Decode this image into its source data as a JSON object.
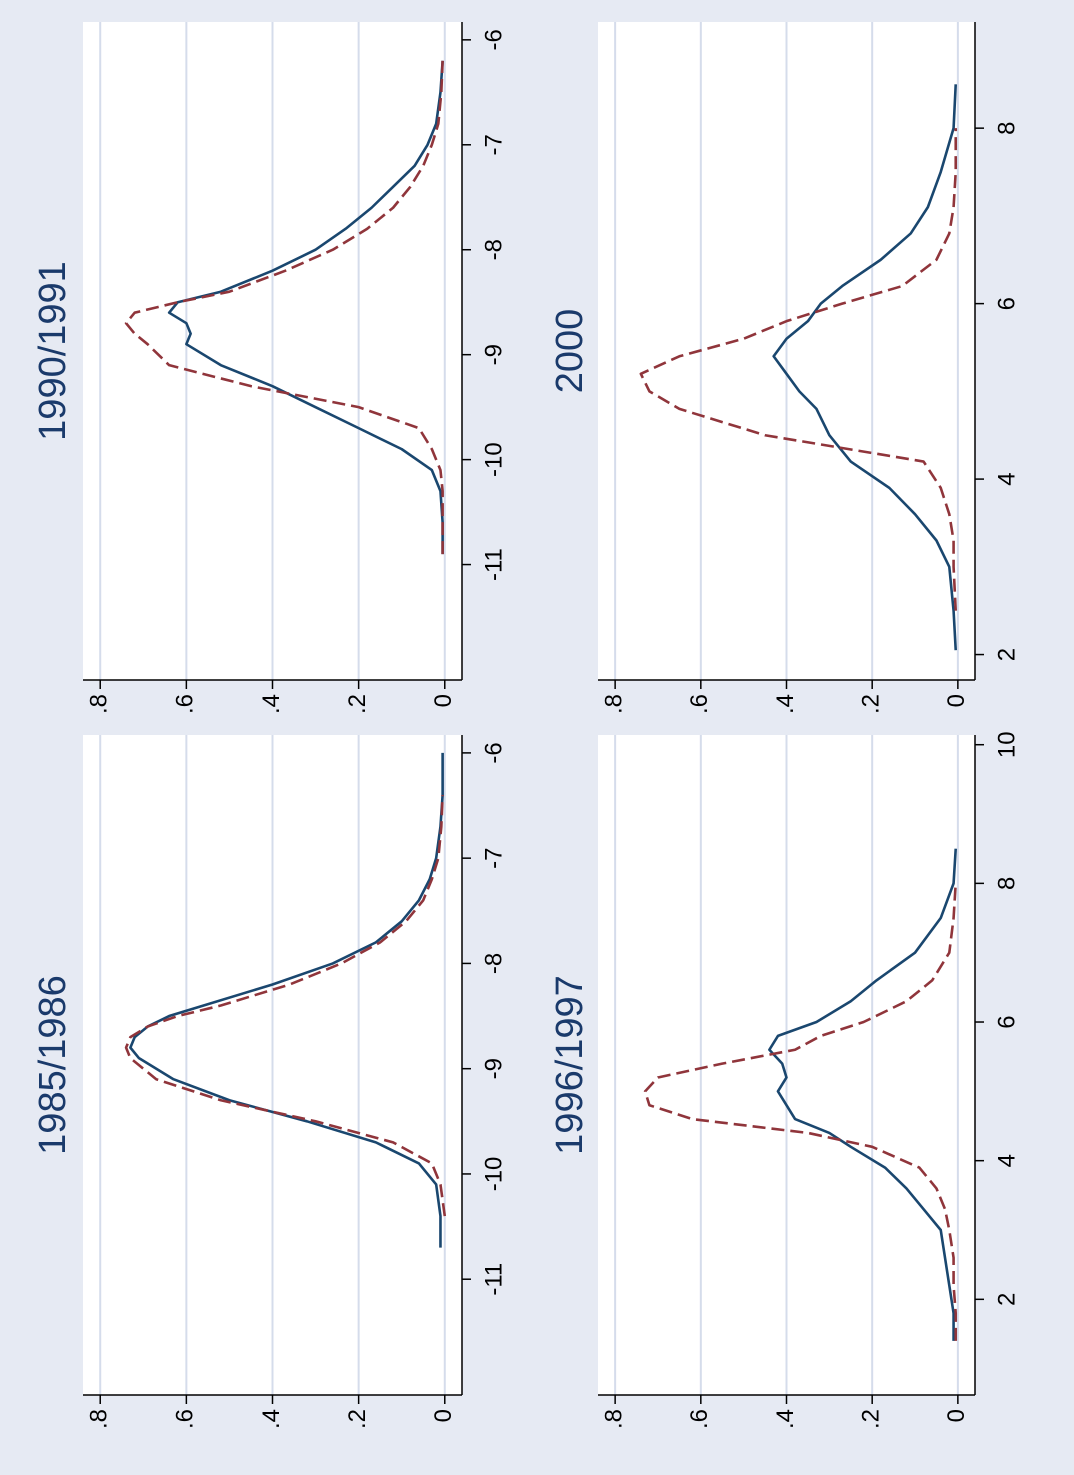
{
  "chart_data": [
    {
      "type": "line",
      "title": "1985/1986",
      "x": [
        -10.7,
        -10.4,
        -10.1,
        -9.9,
        -9.7,
        -9.5,
        -9.3,
        -9.1,
        -8.9,
        -8.8,
        -8.7,
        -8.6,
        -8.5,
        -8.4,
        -8.2,
        -8.0,
        -7.8,
        -7.6,
        -7.4,
        -7.2,
        -7.0,
        -6.7,
        -6.4,
        -6.0
      ],
      "series": [
        {
          "color": "#1a476f",
          "style": "solid",
          "values": [
            0.01,
            0.01,
            0.02,
            0.06,
            0.16,
            0.32,
            0.5,
            0.63,
            0.71,
            0.73,
            0.72,
            0.69,
            0.64,
            0.56,
            0.4,
            0.26,
            0.16,
            0.1,
            0.06,
            0.035,
            0.02,
            0.01,
            0.005,
            0.005
          ]
        },
        {
          "color": "#90353b",
          "style": "dashed",
          "values": [
            null,
            0.0,
            0.01,
            0.03,
            0.12,
            0.3,
            0.52,
            0.67,
            0.73,
            0.74,
            0.73,
            0.69,
            0.62,
            0.52,
            0.36,
            0.24,
            0.15,
            0.09,
            0.05,
            0.03,
            0.015,
            0.008,
            0.005,
            null
          ]
        }
      ],
      "xlim": [
        -12.1,
        -5.83
      ],
      "xticks": [
        -11,
        -10,
        -9,
        -8,
        -7,
        -6
      ],
      "ylim": [
        -0.04,
        0.84
      ],
      "yticks": [
        0,
        {
          "value": 0.2,
          "label": ".2"
        },
        {
          "value": 0.4,
          "label": ".4"
        },
        {
          "value": 0.6,
          "label": ".6"
        },
        {
          "value": 0.8,
          "label": ".8"
        }
      ],
      "grid": true
    },
    {
      "type": "line",
      "title": "1990/1991",
      "x": [
        -10.9,
        -10.6,
        -10.3,
        -10.1,
        -9.9,
        -9.7,
        -9.5,
        -9.3,
        -9.1,
        -8.9,
        -8.8,
        -8.7,
        -8.6,
        -8.5,
        -8.4,
        -8.2,
        -8.0,
        -7.8,
        -7.6,
        -7.4,
        -7.2,
        -7.0,
        -6.8,
        -6.5,
        -6.2
      ],
      "series": [
        {
          "color": "#1a476f",
          "style": "solid",
          "values": [
            0.005,
            0.005,
            0.01,
            0.03,
            0.1,
            0.2,
            0.3,
            0.4,
            0.52,
            0.6,
            0.59,
            0.6,
            0.64,
            0.62,
            0.52,
            0.4,
            0.3,
            0.23,
            0.17,
            0.12,
            0.07,
            0.04,
            0.02,
            0.01,
            0.005
          ]
        },
        {
          "color": "#90353b",
          "style": "dashed",
          "values": [
            0.005,
            0.005,
            0.005,
            0.01,
            0.03,
            0.06,
            0.2,
            0.45,
            0.64,
            0.69,
            0.72,
            0.74,
            0.72,
            0.62,
            0.5,
            0.37,
            0.26,
            0.18,
            0.12,
            0.08,
            0.05,
            0.03,
            0.015,
            0.008,
            0.005
          ]
        }
      ],
      "xlim": [
        -12.1,
        -5.83
      ],
      "xticks": [
        -11,
        -10,
        -9,
        -8,
        -7,
        -6
      ],
      "ylim": [
        -0.04,
        0.84
      ],
      "yticks": [
        0,
        {
          "value": 0.2,
          "label": ".2"
        },
        {
          "value": 0.4,
          "label": ".4"
        },
        {
          "value": 0.6,
          "label": ".6"
        },
        {
          "value": 0.8,
          "label": ".8"
        }
      ],
      "grid": true
    },
    {
      "type": "line",
      "title": "1996/1997",
      "x": [
        1.4,
        1.8,
        2.2,
        2.6,
        3.0,
        3.3,
        3.6,
        3.9,
        4.2,
        4.4,
        4.6,
        4.8,
        5.0,
        5.2,
        5.4,
        5.6,
        5.8,
        6.0,
        6.3,
        6.6,
        7.0,
        7.5,
        8.0,
        8.5
      ],
      "series": [
        {
          "color": "#1a476f",
          "style": "solid",
          "values": [
            0.01,
            0.01,
            0.02,
            0.03,
            0.04,
            0.08,
            0.12,
            0.17,
            0.25,
            0.3,
            0.38,
            0.4,
            0.42,
            0.4,
            0.41,
            0.44,
            0.42,
            0.33,
            0.25,
            0.19,
            0.1,
            0.04,
            0.01,
            0.005
          ]
        },
        {
          "color": "#90353b",
          "style": "dashed",
          "values": [
            0.005,
            0.005,
            0.01,
            0.01,
            0.02,
            0.03,
            0.05,
            0.09,
            0.2,
            0.35,
            0.62,
            0.72,
            0.73,
            0.7,
            0.55,
            0.38,
            0.32,
            0.22,
            0.12,
            0.06,
            0.02,
            0.01,
            0.005,
            null
          ]
        }
      ],
      "xlim": [
        0.62,
        10.14
      ],
      "xticks": [
        2,
        4,
        6,
        8,
        10
      ],
      "ylim": [
        -0.04,
        0.84
      ],
      "yticks": [
        0,
        {
          "value": 0.2,
          "label": ".2"
        },
        {
          "value": 0.4,
          "label": ".4"
        },
        {
          "value": 0.6,
          "label": ".6"
        },
        {
          "value": 0.8,
          "label": ".8"
        }
      ],
      "grid": true
    },
    {
      "type": "line",
      "title": "2000",
      "x": [
        2.05,
        2.5,
        3.0,
        3.3,
        3.6,
        3.9,
        4.2,
        4.5,
        4.8,
        5.0,
        5.2,
        5.4,
        5.6,
        5.8,
        6.0,
        6.2,
        6.5,
        6.8,
        7.1,
        7.5,
        8.0,
        8.5
      ],
      "series": [
        {
          "color": "#1a476f",
          "style": "solid",
          "values": [
            0.005,
            0.01,
            0.02,
            0.05,
            0.1,
            0.16,
            0.25,
            0.3,
            0.33,
            0.37,
            0.4,
            0.43,
            0.4,
            0.35,
            0.32,
            0.27,
            0.18,
            0.11,
            0.07,
            0.04,
            0.01,
            0.005
          ]
        },
        {
          "color": "#90353b",
          "style": "dashed",
          "values": [
            null,
            0.005,
            0.01,
            0.01,
            0.02,
            0.04,
            0.08,
            0.45,
            0.65,
            0.72,
            0.74,
            0.65,
            0.5,
            0.4,
            0.27,
            0.13,
            0.05,
            0.02,
            0.01,
            0.005,
            0.005,
            null
          ]
        }
      ],
      "xlim": [
        1.71,
        9.21
      ],
      "xticks": [
        2,
        4,
        6,
        8
      ],
      "ylim": [
        -0.04,
        0.84
      ],
      "yticks": [
        0,
        {
          "value": 0.2,
          "label": ".2"
        },
        {
          "value": 0.4,
          "label": ".4"
        },
        {
          "value": 0.6,
          "label": ".6"
        },
        {
          "value": 0.8,
          "label": ".8"
        }
      ],
      "grid": true
    }
  ]
}
